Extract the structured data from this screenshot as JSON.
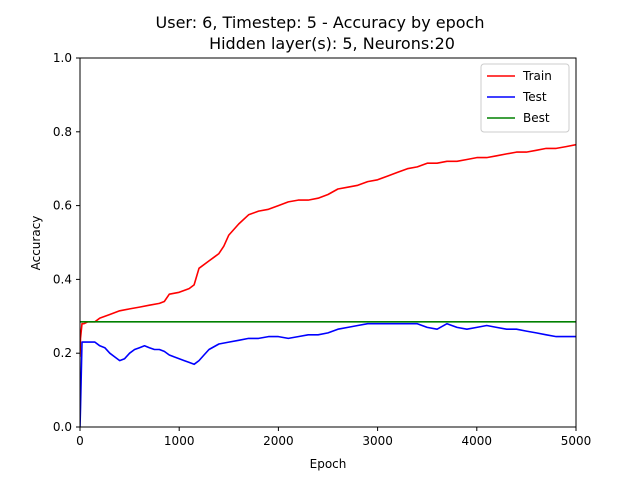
{
  "chart_data": {
    "type": "line",
    "title": "User: 6, Timestep: 5 - Accuracy by epoch",
    "subtitle": "Hidden layer(s): 5, Neurons:20",
    "xlabel": "Epoch",
    "ylabel": "Accuracy",
    "xlim": [
      0,
      5000
    ],
    "ylim": [
      0.0,
      1.0
    ],
    "xticks": [
      0,
      1000,
      2000,
      3000,
      4000,
      5000
    ],
    "xtick_labels": [
      "0",
      "1000",
      "2000",
      "3000",
      "4000",
      "5000"
    ],
    "yticks": [
      0.0,
      0.2,
      0.4,
      0.6,
      0.8,
      1.0
    ],
    "ytick_labels": [
      "0.0",
      "0.2",
      "0.4",
      "0.6",
      "0.8",
      "1.0"
    ],
    "grid": false,
    "legend_position": "top-right",
    "series": [
      {
        "name": "Train",
        "color": "#ff0000",
        "x": [
          0,
          5,
          20,
          40,
          80,
          150,
          200,
          300,
          400,
          500,
          600,
          700,
          800,
          850,
          900,
          1000,
          1100,
          1150,
          1200,
          1300,
          1350,
          1400,
          1450,
          1500,
          1600,
          1700,
          1800,
          1900,
          2000,
          2100,
          2200,
          2300,
          2400,
          2500,
          2600,
          2700,
          2800,
          2900,
          3000,
          3100,
          3200,
          3300,
          3400,
          3500,
          3600,
          3700,
          3800,
          3900,
          4000,
          4100,
          4200,
          4300,
          4400,
          4500,
          4600,
          4700,
          4800,
          4900,
          5000
        ],
        "y": [
          0.19,
          0.24,
          0.28,
          0.28,
          0.285,
          0.285,
          0.295,
          0.305,
          0.315,
          0.32,
          0.325,
          0.33,
          0.335,
          0.34,
          0.36,
          0.365,
          0.375,
          0.385,
          0.43,
          0.45,
          0.46,
          0.47,
          0.49,
          0.52,
          0.55,
          0.575,
          0.585,
          0.59,
          0.6,
          0.61,
          0.615,
          0.615,
          0.62,
          0.63,
          0.645,
          0.65,
          0.655,
          0.665,
          0.67,
          0.68,
          0.69,
          0.7,
          0.705,
          0.715,
          0.715,
          0.72,
          0.72,
          0.725,
          0.73,
          0.73,
          0.735,
          0.74,
          0.745,
          0.745,
          0.75,
          0.755,
          0.755,
          0.76,
          0.765
        ]
      },
      {
        "name": "Test",
        "color": "#0000ff",
        "x": [
          0,
          5,
          20,
          40,
          60,
          100,
          150,
          200,
          250,
          300,
          350,
          400,
          450,
          500,
          550,
          600,
          650,
          700,
          750,
          800,
          850,
          900,
          950,
          1000,
          1050,
          1100,
          1150,
          1200,
          1250,
          1300,
          1400,
          1500,
          1600,
          1700,
          1800,
          1900,
          2000,
          2100,
          2200,
          2300,
          2400,
          2500,
          2600,
          2700,
          2800,
          2900,
          3000,
          3100,
          3200,
          3300,
          3400,
          3500,
          3600,
          3700,
          3800,
          3900,
          4000,
          4100,
          4200,
          4300,
          4400,
          4500,
          4600,
          4700,
          4800,
          4900,
          5000
        ],
        "y": [
          0.0,
          0.05,
          0.23,
          0.23,
          0.23,
          0.23,
          0.23,
          0.22,
          0.215,
          0.2,
          0.19,
          0.18,
          0.185,
          0.2,
          0.21,
          0.215,
          0.22,
          0.215,
          0.21,
          0.21,
          0.205,
          0.195,
          0.19,
          0.185,
          0.18,
          0.175,
          0.17,
          0.18,
          0.195,
          0.21,
          0.225,
          0.23,
          0.235,
          0.24,
          0.24,
          0.245,
          0.245,
          0.24,
          0.245,
          0.25,
          0.25,
          0.255,
          0.265,
          0.27,
          0.275,
          0.28,
          0.28,
          0.28,
          0.28,
          0.28,
          0.28,
          0.27,
          0.265,
          0.28,
          0.27,
          0.265,
          0.27,
          0.275,
          0.27,
          0.265,
          0.265,
          0.26,
          0.255,
          0.25,
          0.245,
          0.245,
          0.245
        ]
      },
      {
        "name": "Best",
        "color": "#008000",
        "x": [
          0,
          5000
        ],
        "y": [
          0.285,
          0.285
        ]
      }
    ]
  }
}
